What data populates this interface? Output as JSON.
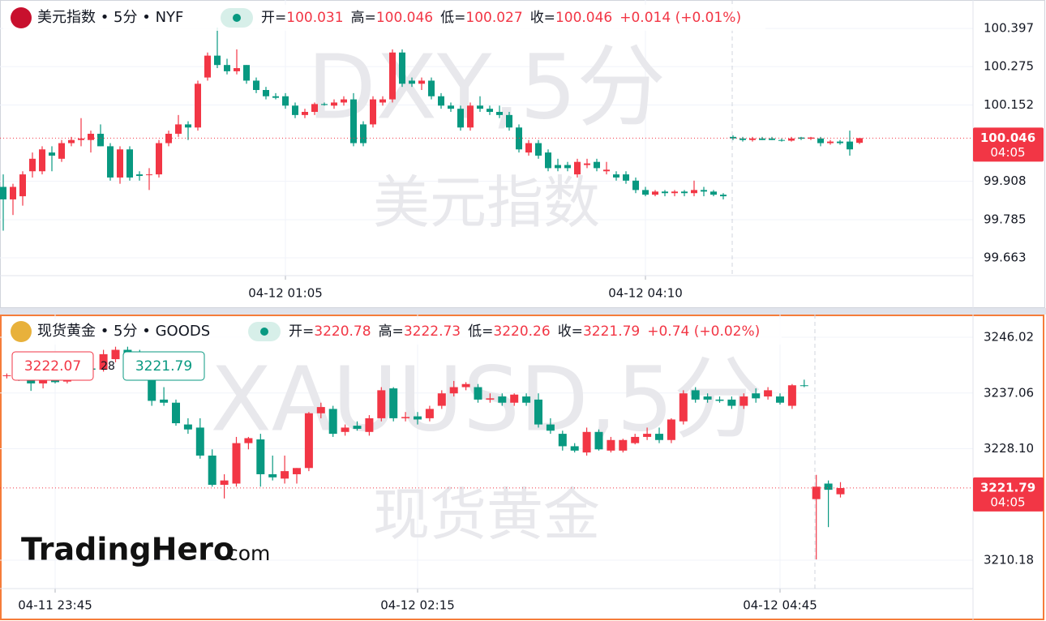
{
  "chart_data": [
    {
      "type": "candlestick",
      "title": "美元指数 • 5分 • NYF",
      "fields": [
        {
          "label": "开=",
          "value": "100.031"
        },
        {
          "label": "高=",
          "value": "100.046"
        },
        {
          "label": "低=",
          "value": "100.027"
        },
        {
          "label": "收=",
          "value": "100.046"
        }
      ],
      "change": "+0.014 (+0.01%)",
      "watermark": [
        "DXY,5分",
        "美元指数"
      ],
      "up_color": "#f23645",
      "down_color": "#089981",
      "categories": [
        null,
        null,
        null,
        null,
        null,
        null,
        null,
        null,
        null,
        null,
        null,
        null,
        null,
        null,
        null,
        null,
        null,
        null,
        null,
        null,
        null,
        null,
        null,
        null,
        null,
        null,
        null,
        null,
        null,
        "04-12 01:05",
        null,
        null,
        null,
        null,
        null,
        null,
        null,
        null,
        null,
        null,
        null,
        null,
        null,
        null,
        null,
        null,
        null,
        null,
        null,
        null,
        null,
        null,
        null,
        null,
        null,
        null,
        null,
        null,
        null,
        null,
        null,
        null,
        null,
        null,
        null,
        null,
        "04-12 04:10",
        null,
        null,
        null,
        null,
        null,
        null,
        null,
        null,
        null,
        null,
        null,
        null,
        null,
        null,
        null,
        null,
        null,
        null,
        null,
        null,
        null,
        null
      ],
      "open": [
        99.89,
        99.85,
        99.86,
        99.94,
        99.94,
        100.0,
        99.98,
        100.03,
        100.04,
        100.04,
        100.06,
        100.02,
        99.92,
        100.01,
        99.93,
        99.93,
        99.93,
        100.03,
        100.06,
        100.09,
        100.08,
        100.24,
        100.31,
        100.28,
        100.26,
        100.28,
        100.23,
        100.2,
        100.18,
        100.18,
        100.15,
        100.12,
        100.13,
        100.155,
        100.15,
        100.16,
        100.17,
        100.09,
        100.09,
        100.16,
        100.17,
        100.32,
        100.23,
        100.22,
        100.23,
        100.18,
        100.15,
        100.14,
        100.08,
        100.15,
        100.14,
        100.13,
        100.12,
        100.08,
        100.0,
        100.03,
        100.0,
        99.96,
        99.96,
        99.93,
        99.96,
        99.97,
        99.94,
        99.93,
        99.93,
        99.91,
        99.88,
        99.865,
        99.875,
        99.87,
        99.875,
        99.87,
        99.88,
        99.875,
        99.865,
        100.05,
        100.045,
        100.04,
        100.045,
        100.045,
        100.04,
        100.038,
        100.048,
        100.044,
        100.045,
        100.03,
        100.035,
        100.035,
        100.031
      ],
      "high": [
        99.93,
        99.9,
        99.94,
        100.0,
        100.02,
        100.02,
        100.04,
        100.05,
        100.11,
        100.07,
        100.09,
        100.03,
        100.02,
        100.02,
        99.94,
        99.95,
        100.04,
        100.07,
        100.12,
        100.1,
        100.23,
        100.32,
        100.4,
        100.3,
        100.33,
        100.28,
        100.24,
        100.21,
        100.19,
        100.19,
        100.16,
        100.14,
        100.16,
        100.16,
        100.17,
        100.18,
        100.19,
        100.1,
        100.18,
        100.18,
        100.33,
        100.33,
        100.24,
        100.24,
        100.24,
        100.19,
        100.16,
        100.15,
        100.16,
        100.18,
        100.15,
        100.15,
        100.13,
        100.09,
        100.04,
        100.04,
        100.01,
        99.98,
        99.97,
        99.98,
        99.98,
        99.98,
        99.97,
        99.94,
        99.94,
        99.92,
        99.89,
        99.88,
        99.88,
        99.88,
        99.88,
        99.91,
        99.89,
        99.88,
        99.87,
        100.055,
        100.05,
        100.05,
        100.05,
        100.05,
        100.045,
        100.05,
        100.05,
        100.05,
        100.05,
        100.04,
        100.04,
        100.07,
        100.046
      ],
      "low": [
        99.75,
        99.8,
        99.83,
        99.92,
        99.93,
        99.94,
        99.97,
        100.02,
        100.02,
        100.0,
        100.02,
        99.91,
        99.9,
        99.91,
        99.91,
        99.88,
        99.92,
        100.02,
        100.05,
        100.04,
        100.07,
        100.23,
        100.27,
        100.25,
        100.25,
        100.22,
        100.19,
        100.17,
        100.17,
        100.14,
        100.11,
        100.11,
        100.12,
        100.15,
        100.14,
        100.15,
        100.02,
        100.02,
        100.08,
        100.15,
        100.16,
        100.21,
        100.21,
        100.2,
        100.17,
        100.14,
        100.13,
        100.07,
        100.07,
        100.13,
        100.12,
        100.11,
        100.07,
        100.0,
        99.99,
        99.98,
        99.94,
        99.94,
        99.94,
        99.92,
        99.95,
        99.94,
        99.93,
        99.91,
        99.9,
        99.87,
        99.86,
        99.86,
        99.86,
        99.86,
        99.86,
        99.86,
        99.86,
        99.86,
        99.85,
        100.04,
        100.035,
        100.035,
        100.04,
        100.04,
        100.035,
        100.035,
        100.04,
        100.04,
        100.02,
        100.025,
        100.025,
        99.99,
        100.027
      ],
      "close": [
        99.85,
        99.89,
        99.93,
        99.98,
        100.01,
        99.99,
        100.03,
        100.04,
        100.045,
        100.06,
        100.02,
        99.92,
        100.01,
        99.92,
        99.925,
        99.93,
        100.03,
        100.06,
        100.09,
        100.08,
        100.22,
        100.31,
        100.28,
        100.26,
        100.27,
        100.23,
        100.2,
        100.18,
        100.175,
        100.15,
        100.12,
        100.13,
        100.155,
        100.152,
        100.16,
        100.17,
        100.03,
        100.03,
        100.17,
        100.17,
        100.32,
        100.22,
        100.22,
        100.23,
        100.18,
        100.15,
        100.14,
        100.08,
        100.15,
        100.14,
        100.13,
        100.12,
        100.08,
        100.01,
        100.03,
        99.99,
        99.95,
        99.95,
        99.95,
        99.97,
        99.965,
        99.95,
        99.945,
        99.92,
        99.91,
        99.88,
        99.865,
        99.875,
        99.87,
        99.875,
        99.87,
        99.88,
        99.875,
        99.865,
        99.86,
        100.045,
        100.04,
        100.045,
        100.04,
        100.04,
        100.038,
        100.045,
        100.044,
        100.048,
        100.03,
        100.035,
        100.03,
        100.01,
        100.046
      ],
      "ylim": [
        99.606,
        100.488
      ],
      "yticks": [
        99.663,
        99.785,
        99.908,
        100.152,
        100.275,
        100.397
      ],
      "last_price": 100.046,
      "countdown": "04:05"
    },
    {
      "type": "candlestick",
      "title": "现货黄金 • 5分 • GOODS",
      "fields": [
        {
          "label": "开=",
          "value": "3220.78"
        },
        {
          "label": "高=",
          "value": "3222.73"
        },
        {
          "label": "低=",
          "value": "3220.26"
        },
        {
          "label": "收=",
          "value": "3221.79"
        }
      ],
      "change": "+0.74 (+0.02%)",
      "watermark": [
        "XAUUSD,5分",
        "现货黄金"
      ],
      "up_color": "#f23645",
      "down_color": "#089981",
      "categories": [
        null,
        null,
        null,
        null,
        "04-11 23:45",
        null,
        null,
        null,
        null,
        null,
        null,
        null,
        null,
        null,
        null,
        null,
        null,
        null,
        null,
        null,
        null,
        null,
        null,
        null,
        null,
        null,
        null,
        null,
        null,
        null,
        null,
        null,
        null,
        null,
        "04-12 02:15",
        null,
        null,
        null,
        null,
        null,
        null,
        null,
        null,
        null,
        null,
        null,
        null,
        null,
        null,
        null,
        null,
        null,
        null,
        null,
        null,
        null,
        null,
        null,
        null,
        null,
        null,
        null,
        null,
        null,
        "04-12 04:45",
        null,
        null,
        null,
        null,
        null
      ],
      "open": [
        3239.8,
        3240.0,
        3239.5,
        3238.6,
        3240.2,
        3238.9,
        3240.0,
        3241.0,
        3240.8,
        3242.5,
        3244.0,
        3241.5,
        3240.5,
        3236.0,
        3235.5,
        3232.0,
        3231.5,
        3227.0,
        3222.3,
        3222.5,
        3229.0,
        3229.6,
        3224.0,
        3223.3,
        3224.0,
        3225.0,
        3233.8,
        3234.5,
        3230.8,
        3231.8,
        3230.8,
        3233.0,
        3237.8,
        3233.0,
        3233.3,
        3233.0,
        3235.0,
        3237.0,
        3238.0,
        3238.0,
        3236.0,
        3236.5,
        3235.5,
        3236.5,
        3236.0,
        3232.0,
        3230.5,
        3228.5,
        3227.5,
        3230.8,
        3227.8,
        3227.8,
        3229.0,
        3230.0,
        3230.5,
        3229.5,
        3232.5,
        3237.5,
        3236.5,
        3236.0,
        3236.0,
        3235.0,
        3237.0,
        3236.5,
        3236.5,
        3235.0,
        3238.3,
        3220.0,
        3222.5,
        3220.78
      ],
      "high": [
        3240.2,
        3240.3,
        3240.0,
        3240.4,
        3241.0,
        3241.0,
        3241.5,
        3241.5,
        3244.0,
        3244.5,
        3244.5,
        3244.0,
        3241.5,
        3238.0,
        3236.0,
        3233.0,
        3233.0,
        3228.0,
        3224.0,
        3230.0,
        3230.0,
        3230.5,
        3227.0,
        3227.0,
        3225.0,
        3234.0,
        3235.5,
        3235.0,
        3232.0,
        3232.5,
        3233.5,
        3238.0,
        3238.0,
        3234.0,
        3234.0,
        3235.0,
        3237.5,
        3239.0,
        3238.8,
        3238.5,
        3237.0,
        3237.0,
        3237.0,
        3237.0,
        3237.0,
        3233.0,
        3231.0,
        3229.0,
        3231.5,
        3231.2,
        3230.0,
        3229.7,
        3230.5,
        3231.5,
        3231.5,
        3233.0,
        3237.5,
        3238.0,
        3237.0,
        3236.5,
        3236.5,
        3237.0,
        3237.8,
        3238.0,
        3237.0,
        3238.5,
        3239.2,
        3223.9,
        3223.0,
        3222.73
      ],
      "low": [
        3239.4,
        3239.0,
        3237.4,
        3237.8,
        3238.6,
        3238.6,
        3239.8,
        3240.3,
        3240.5,
        3242.0,
        3241.0,
        3240.0,
        3235.0,
        3235.0,
        3231.8,
        3230.5,
        3226.5,
        3222.0,
        3220.1,
        3222.0,
        3228.0,
        3222.0,
        3223.0,
        3222.5,
        3222.5,
        3224.5,
        3233.0,
        3230.0,
        3230.2,
        3231.0,
        3230.2,
        3232.5,
        3232.5,
        3232.5,
        3232.0,
        3232.5,
        3234.5,
        3236.5,
        3237.5,
        3235.5,
        3235.5,
        3235.0,
        3235.0,
        3235.0,
        3231.5,
        3230.5,
        3227.8,
        3227.5,
        3227.0,
        3227.8,
        3227.5,
        3227.5,
        3228.8,
        3229.5,
        3229.0,
        3229.0,
        3232.0,
        3235.5,
        3235.5,
        3235.5,
        3234.5,
        3234.5,
        3235.5,
        3236.0,
        3235.2,
        3234.5,
        3238.0,
        3210.3,
        3215.5,
        3220.26
      ],
      "close": [
        3239.9,
        3239.3,
        3238.6,
        3240.0,
        3238.8,
        3240.7,
        3241.0,
        3240.8,
        3243.3,
        3244.0,
        3241.5,
        3240.5,
        3235.8,
        3235.5,
        3232.2,
        3231.2,
        3227.0,
        3222.3,
        3223.0,
        3229.0,
        3229.8,
        3224.0,
        3223.5,
        3224.5,
        3225.0,
        3233.8,
        3234.8,
        3230.5,
        3231.5,
        3231.3,
        3233.0,
        3237.5,
        3233.0,
        3233.2,
        3232.8,
        3234.5,
        3237.0,
        3238.0,
        3238.5,
        3236.0,
        3236.2,
        3235.5,
        3236.8,
        3235.5,
        3232.0,
        3231.0,
        3228.5,
        3227.8,
        3230.8,
        3228.0,
        3229.5,
        3229.5,
        3230.0,
        3230.5,
        3229.5,
        3232.8,
        3237.0,
        3236.0,
        3236.0,
        3235.8,
        3235.0,
        3236.5,
        3236.2,
        3237.5,
        3235.5,
        3238.3,
        3238.2,
        3222.0,
        3221.5,
        3221.79
      ],
      "ylim": [
        3205.62,
        3249.67
      ],
      "yticks": [
        {
          "value": 3210.18,
          "label": "3210.18"
        },
        {
          "value": 3228.1,
          "label": "3228.10"
        },
        3237.06,
        3246.02
      ],
      "last_price": 3221.79,
      "countdown": "04:05",
      "annotations": [
        "3222.07",
        "28",
        "3221.79"
      ]
    }
  ],
  "logo": {
    "name": "TradingHero",
    "suffix": ".com"
  }
}
